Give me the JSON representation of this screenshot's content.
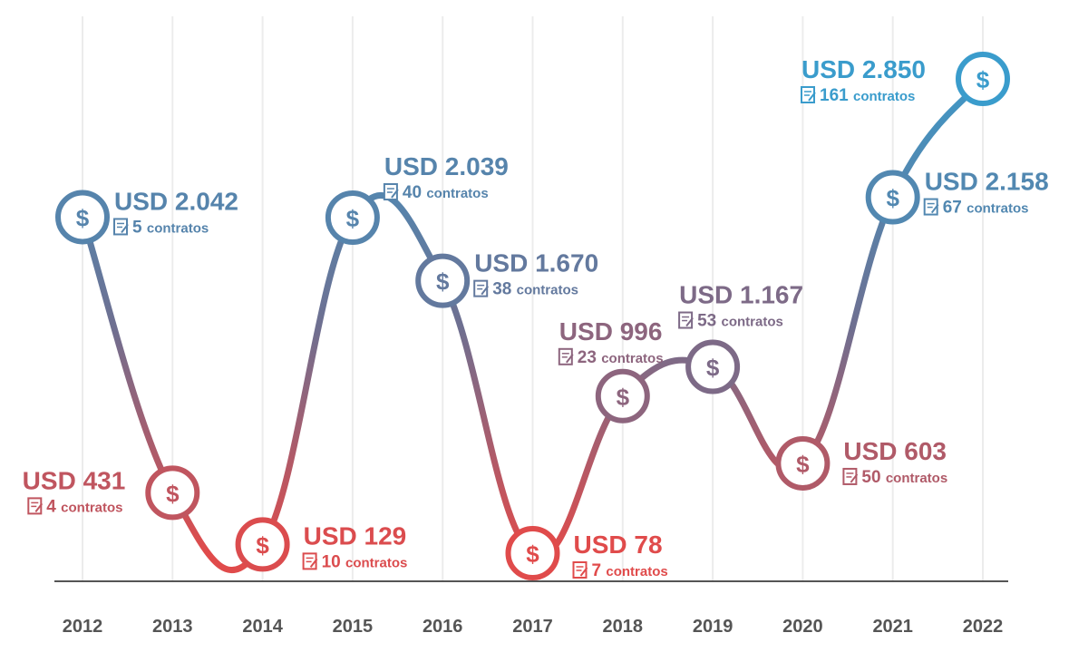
{
  "chart_data": {
    "type": "line",
    "x": [
      "2012",
      "2013",
      "2014",
      "2015",
      "2016",
      "2017",
      "2018",
      "2019",
      "2020",
      "2021",
      "2022"
    ],
    "series": [
      {
        "values": [
          2042,
          431,
          129,
          2039,
          1670,
          78,
          996,
          1167,
          603,
          2158,
          2850
        ],
        "value_labels": [
          "USD 2.042",
          "USD 431",
          "USD 129",
          "USD 2.039",
          "USD 1.670",
          "USD 78",
          "USD 996",
          "USD 1.167",
          "USD 603",
          "USD 2.158",
          "USD 2.850"
        ],
        "contracts": [
          5,
          4,
          10,
          40,
          38,
          7,
          23,
          53,
          50,
          67,
          161
        ],
        "contract_unit": "contratos"
      }
    ],
    "marker_symbol": "$",
    "grid": true,
    "colors": {
      "high": "#3a9ccc",
      "mid": "#6f6f90",
      "low": "#e04b4b"
    }
  }
}
